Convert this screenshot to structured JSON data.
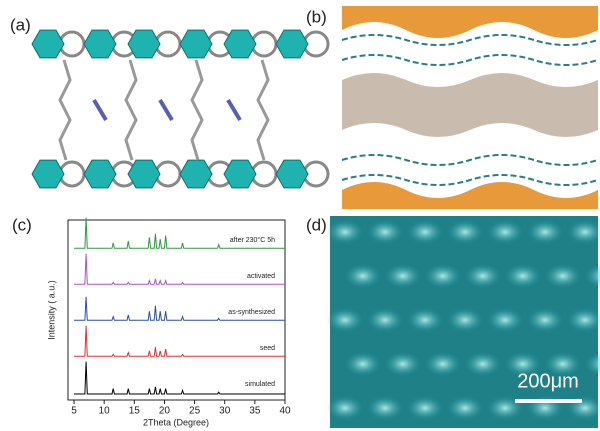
{
  "panel_labels": [
    "(a)",
    "(b)",
    "(c)",
    "(d)"
  ],
  "scale_bar": "200μm",
  "chart_data": {
    "type": "line",
    "xlabel": "2Theta (Degree)",
    "ylabel": "Intensity ( a.u.)",
    "xlim": [
      4,
      40
    ],
    "xticks": [
      5,
      10,
      15,
      20,
      25,
      30,
      35,
      40
    ],
    "ylim": [
      0,
      5
    ],
    "x": [
      5,
      6.8,
      7,
      7.2,
      11.3,
      11.5,
      11.7,
      13.8,
      14,
      14.2,
      17.3,
      17.5,
      17.7,
      18.3,
      18.5,
      18.7,
      19.1,
      19.3,
      19.5,
      20,
      20.2,
      20.4,
      22.8,
      23,
      23.2,
      28.8,
      29,
      29.2,
      40
    ],
    "series": [
      {
        "name": "after 230°C 5h",
        "color": "#2e9a3e",
        "values": [
          0.05,
          0.05,
          0.9,
          0.05,
          0.05,
          0.2,
          0.05,
          0.05,
          0.25,
          0.05,
          0.05,
          0.35,
          0.05,
          0.05,
          0.45,
          0.05,
          0.05,
          0.3,
          0.05,
          0.05,
          0.4,
          0.05,
          0.05,
          0.2,
          0.05,
          0.05,
          0.15,
          0.05,
          0.05
        ]
      },
      {
        "name": "activated",
        "color": "#b050c0",
        "values": [
          0.05,
          0.05,
          0.9,
          0.05,
          0.05,
          0.1,
          0.05,
          0.05,
          0.1,
          0.05,
          0.05,
          0.15,
          0.05,
          0.05,
          0.2,
          0.05,
          0.05,
          0.15,
          0.05,
          0.05,
          0.15,
          0.05,
          0.05,
          0.1,
          0.05,
          0.05,
          0.05,
          0.05,
          0.05
        ]
      },
      {
        "name": "as-synthesized",
        "color": "#2a4fa0",
        "values": [
          0.05,
          0.05,
          0.7,
          0.05,
          0.05,
          0.15,
          0.05,
          0.05,
          0.2,
          0.05,
          0.05,
          0.3,
          0.05,
          0.05,
          0.45,
          0.05,
          0.05,
          0.3,
          0.05,
          0.05,
          0.3,
          0.05,
          0.05,
          0.15,
          0.05,
          0.05,
          0.1,
          0.05,
          0.05
        ]
      },
      {
        "name": "seed",
        "color": "#e03030",
        "values": [
          0.05,
          0.05,
          0.9,
          0.05,
          0.05,
          0.1,
          0.05,
          0.05,
          0.15,
          0.05,
          0.05,
          0.2,
          0.05,
          0.05,
          0.3,
          0.05,
          0.05,
          0.2,
          0.05,
          0.05,
          0.25,
          0.05,
          0.05,
          0.1,
          0.05,
          0.05,
          0.05,
          0.05,
          0.05
        ]
      },
      {
        "name": "simulated",
        "color": "#000000",
        "values": [
          0,
          0,
          0.9,
          0,
          0,
          0.15,
          0,
          0,
          0.15,
          0,
          0,
          0.15,
          0,
          0,
          0.2,
          0,
          0,
          0.15,
          0,
          0,
          0.15,
          0,
          0,
          0.1,
          0,
          0,
          0.05,
          0,
          0
        ]
      }
    ]
  }
}
